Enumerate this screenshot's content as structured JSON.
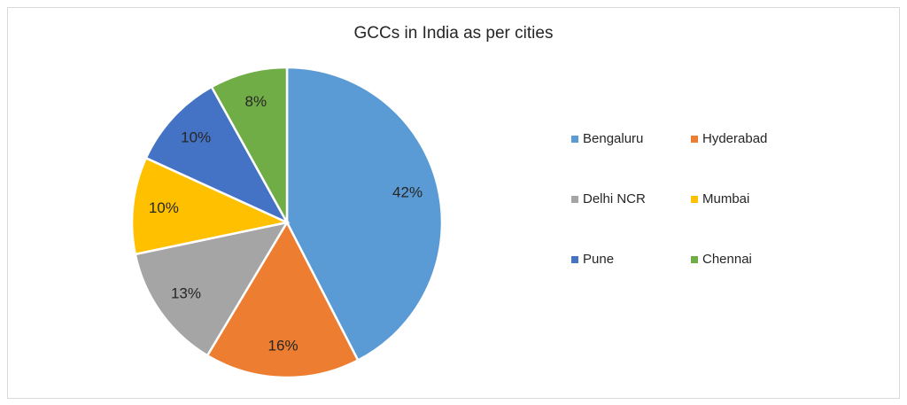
{
  "chart_data": {
    "type": "pie",
    "title": "GCCs in India as per cities",
    "categories": [
      "Bengaluru",
      "Hyderabad",
      "Delhi NCR",
      "Mumbai",
      "Pune",
      "Chennai"
    ],
    "values": [
      42,
      16,
      13,
      10,
      10,
      8
    ],
    "value_labels": [
      "42%",
      "16%",
      "13%",
      "10%",
      "10%",
      "8%"
    ],
    "colors": [
      "#5b9bd5",
      "#ed7d31",
      "#a5a5a5",
      "#ffc000",
      "#4472c4",
      "#70ad47"
    ],
    "legend": "right"
  }
}
